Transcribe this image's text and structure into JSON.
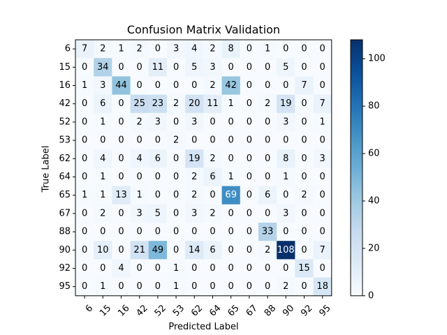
{
  "chart_data": {
    "type": "heatmap",
    "title": "Confusion Matrix Validation",
    "xlabel": "Predicted Label",
    "ylabel": "True Label",
    "x_categories": [
      "6",
      "15",
      "16",
      "42",
      "52",
      "53",
      "62",
      "64",
      "65",
      "67",
      "88",
      "90",
      "92",
      "95"
    ],
    "y_categories": [
      "6",
      "15",
      "16",
      "42",
      "52",
      "53",
      "62",
      "64",
      "65",
      "67",
      "88",
      "90",
      "92",
      "95"
    ],
    "matrix": [
      [
        7,
        2,
        1,
        2,
        0,
        3,
        4,
        2,
        8,
        0,
        1,
        0,
        0,
        0
      ],
      [
        0,
        34,
        0,
        0,
        11,
        0,
        5,
        3,
        0,
        0,
        0,
        5,
        0,
        0
      ],
      [
        1,
        3,
        44,
        0,
        0,
        0,
        0,
        2,
        42,
        0,
        0,
        0,
        7,
        0
      ],
      [
        0,
        6,
        0,
        25,
        23,
        2,
        20,
        11,
        1,
        0,
        2,
        19,
        0,
        7
      ],
      [
        0,
        1,
        0,
        2,
        3,
        0,
        3,
        0,
        0,
        0,
        0,
        3,
        0,
        1
      ],
      [
        0,
        0,
        0,
        0,
        0,
        2,
        0,
        0,
        0,
        0,
        0,
        0,
        0,
        0
      ],
      [
        0,
        4,
        0,
        4,
        6,
        0,
        19,
        2,
        0,
        0,
        0,
        8,
        0,
        3
      ],
      [
        0,
        1,
        0,
        0,
        0,
        0,
        2,
        6,
        1,
        0,
        0,
        1,
        0,
        0
      ],
      [
        1,
        1,
        13,
        1,
        0,
        0,
        2,
        0,
        69,
        0,
        6,
        0,
        2,
        0
      ],
      [
        0,
        2,
        0,
        3,
        5,
        0,
        3,
        2,
        0,
        0,
        0,
        3,
        0,
        0
      ],
      [
        0,
        0,
        0,
        0,
        0,
        0,
        0,
        0,
        0,
        0,
        33,
        0,
        0,
        0
      ],
      [
        0,
        10,
        0,
        21,
        49,
        0,
        14,
        6,
        0,
        0,
        2,
        108,
        0,
        7
      ],
      [
        0,
        0,
        4,
        0,
        0,
        1,
        0,
        0,
        0,
        0,
        0,
        0,
        15,
        0
      ],
      [
        0,
        1,
        0,
        0,
        0,
        1,
        0,
        0,
        0,
        0,
        0,
        2,
        0,
        18
      ]
    ],
    "colormap": "Blues",
    "color_range": [
      0,
      108
    ],
    "colorbar_ticks": [
      0,
      20,
      40,
      60,
      80,
      100
    ],
    "colors": {
      "low": "#f7fbff",
      "high": "#08306b",
      "text": "#000000"
    }
  }
}
